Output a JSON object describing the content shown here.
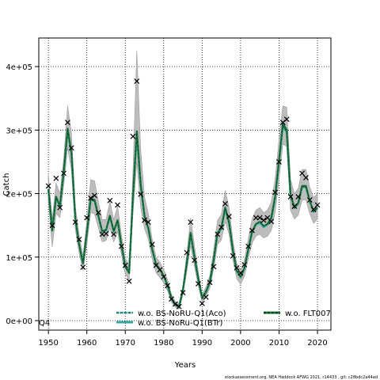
{
  "chart_data": {
    "type": "line",
    "title": "",
    "xlabel": "Years",
    "ylabel": "Catch",
    "xlim": [
      1947.5,
      2023.5
    ],
    "ylim": [
      -15000,
      445000
    ],
    "grid": true,
    "legend_position": "bottom",
    "panel_label": "Q4",
    "x_ticks": [
      1950,
      1960,
      1970,
      1980,
      1990,
      2000,
      2010,
      2020
    ],
    "x_tick_labels": [
      "1950",
      "1960",
      "1970",
      "1980",
      "1990",
      "2000",
      "2010",
      "2020"
    ],
    "y_ticks": [
      0,
      100000,
      200000,
      300000,
      400000
    ],
    "y_tick_labels": [
      "0e+00",
      "1e+05",
      "2e+05",
      "3e+05",
      "4e+05"
    ],
    "colors": {
      "band": "#bdbdbd",
      "line_aco": "#1c5e56",
      "line_btr": "#33a9a3",
      "line_flt": "#1b7a3a",
      "points": "#000000"
    },
    "series": [
      {
        "name": "w.o. BS-NoRU-Q1(Aco)",
        "x": [
          1950,
          1951,
          1952,
          1953,
          1954,
          1955,
          1956,
          1957,
          1958,
          1959,
          1960,
          1961,
          1962,
          1963,
          1964,
          1965,
          1966,
          1967,
          1968,
          1969,
          1970,
          1971,
          1972,
          1973,
          1974,
          1975,
          1976,
          1977,
          1978,
          1979,
          1980,
          1981,
          1982,
          1983,
          1984,
          1985,
          1986,
          1987,
          1988,
          1989,
          1990,
          1991,
          1992,
          1993,
          1994,
          1995,
          1996,
          1997,
          1998,
          1999,
          2000,
          2001,
          2002,
          2003,
          2004,
          2005,
          2006,
          2007,
          2008,
          2009,
          2010,
          2011,
          2012,
          2013,
          2014,
          2015,
          2016,
          2017,
          2018,
          2019,
          2020
        ],
        "values": [
          207000,
          142000,
          195000,
          180000,
          235000,
          302000,
          265000,
          160000,
          120000,
          90000,
          138000,
          192000,
          190000,
          165000,
          140000,
          142000,
          165000,
          140000,
          158000,
          118000,
          85000,
          75000,
          195000,
          298000,
          215000,
          165000,
          145000,
          112000,
          88000,
          80000,
          70000,
          55000,
          35000,
          25000,
          22000,
          48000,
          90000,
          138000,
          100000,
          65000,
          35000,
          45000,
          60000,
          95000,
          138000,
          145000,
          178000,
          155000,
          110000,
          78000,
          68000,
          82000,
          112000,
          140000,
          152000,
          155000,
          148000,
          152000,
          162000,
          195000,
          252000,
          310000,
          300000,
          198000,
          178000,
          185000,
          212000,
          212000,
          188000,
          172000,
          178000
        ],
        "upper": [
          230000,
          160000,
          217000,
          200000,
          256000,
          338000,
          295000,
          180000,
          135000,
          102000,
          156000,
          222000,
          220000,
          187000,
          159000,
          159000,
          188000,
          159000,
          180000,
          135000,
          98000,
          88000,
          235000,
          425000,
          270000,
          195000,
          168000,
          128000,
          100000,
          92000,
          81000,
          64000,
          42000,
          30000,
          27000,
          55000,
          105000,
          162000,
          118000,
          77000,
          42000,
          53000,
          71000,
          111000,
          158000,
          167000,
          205000,
          178000,
          127000,
          90000,
          79000,
          95000,
          129000,
          160000,
          174000,
          178000,
          170000,
          174000,
          187000,
          223000,
          286000,
          338000,
          336000,
          222000,
          200000,
          208000,
          238000,
          238000,
          210000,
          194000,
          200000
        ],
        "lower": [
          187000,
          116000,
          169000,
          162000,
          214000,
          272000,
          237000,
          143000,
          106000,
          79000,
          120000,
          170000,
          168000,
          146000,
          124000,
          126000,
          146000,
          124000,
          140000,
          104000,
          73000,
          64000,
          170000,
          250000,
          178000,
          145000,
          128000,
          97000,
          75000,
          68000,
          59000,
          47000,
          29000,
          21000,
          18000,
          41000,
          77000,
          118000,
          85000,
          55000,
          29000,
          38000,
          51000,
          81000,
          120000,
          127000,
          156000,
          136000,
          95000,
          66000,
          57000,
          70000,
          97000,
          122000,
          133000,
          136000,
          130000,
          133000,
          142000,
          171000,
          222000,
          278000,
          274000,
          174000,
          160000,
          166000,
          190000,
          190000,
          168000,
          153000,
          160000
        ]
      },
      {
        "name": "w.o. BS-NoRu-Q1(BTr)",
        "x": [
          1950,
          1951,
          1952,
          1953,
          1954,
          1955,
          1956,
          1957,
          1958,
          1959,
          1960,
          1961,
          1962,
          1963,
          1964,
          1965,
          1966,
          1967,
          1968,
          1969,
          1970,
          1971,
          1972,
          1973,
          1974,
          1975,
          1976,
          1977,
          1978,
          1979,
          1980,
          1981,
          1982,
          1983,
          1984,
          1985,
          1986,
          1987,
          1988,
          1989,
          1990,
          1991,
          1992,
          1993,
          1994,
          1995,
          1996,
          1997,
          1998,
          1999,
          2000,
          2001,
          2002,
          2003,
          2004,
          2005,
          2006,
          2007,
          2008,
          2009,
          2010,
          2011,
          2012,
          2013,
          2014,
          2015,
          2016,
          2017,
          2018,
          2019,
          2020
        ],
        "values": [
          205000,
          143000,
          193000,
          180000,
          234000,
          298000,
          262000,
          160000,
          121000,
          91000,
          138000,
          190000,
          188000,
          164000,
          140000,
          142000,
          163000,
          140000,
          157000,
          118000,
          86000,
          76000,
          194000,
          292000,
          212000,
          164000,
          144000,
          112000,
          88000,
          80000,
          70000,
          55000,
          35000,
          26000,
          23000,
          48000,
          90000,
          136000,
          99000,
          65000,
          36000,
          46000,
          60000,
          95000,
          137000,
          144000,
          176000,
          153000,
          110000,
          78000,
          68000,
          82000,
          111000,
          139000,
          151000,
          154000,
          147000,
          151000,
          160000,
          193000,
          249000,
          306000,
          296000,
          196000,
          177000,
          184000,
          210000,
          210000,
          187000,
          171000,
          177000
        ]
      },
      {
        "name": "w.o. FLT007",
        "x": [
          1950,
          1951,
          1952,
          1953,
          1954,
          1955,
          1956,
          1957,
          1958,
          1959,
          1960,
          1961,
          1962,
          1963,
          1964,
          1965,
          1966,
          1967,
          1968,
          1969,
          1970,
          1971,
          1972,
          1973,
          1974,
          1975,
          1976,
          1977,
          1978,
          1979,
          1980,
          1981,
          1982,
          1983,
          1984,
          1985,
          1986,
          1987,
          1988,
          1989,
          1990,
          1991,
          1992,
          1993,
          1994,
          1995,
          1996,
          1997,
          1998,
          1999,
          2000,
          2001,
          2002,
          2003,
          2004,
          2005,
          2006,
          2007,
          2008,
          2009,
          2010,
          2011,
          2012,
          2013,
          2014,
          2015,
          2016,
          2017,
          2018,
          2019,
          2020
        ],
        "values": [
          206000,
          142000,
          194000,
          181000,
          235000,
          300000,
          264000,
          161000,
          120000,
          90000,
          139000,
          191000,
          189000,
          165000,
          141000,
          143000,
          164000,
          141000,
          158000,
          119000,
          86000,
          75000,
          196000,
          296000,
          214000,
          165000,
          145000,
          113000,
          89000,
          81000,
          71000,
          56000,
          36000,
          26000,
          22000,
          49000,
          91000,
          137000,
          100000,
          66000,
          36000,
          46000,
          61000,
          96000,
          138000,
          146000,
          177000,
          154000,
          111000,
          79000,
          69000,
          83000,
          112000,
          140000,
          152000,
          156000,
          149000,
          152000,
          161000,
          196000,
          251000,
          308000,
          298000,
          197000,
          178000,
          185000,
          211000,
          211000,
          188000,
          172000,
          177000
        ]
      }
    ],
    "observations": {
      "name": "observed catch",
      "x": [
        1950,
        1951,
        1952,
        1953,
        1954,
        1955,
        1956,
        1957,
        1958,
        1959,
        1960,
        1961,
        1962,
        1963,
        1964,
        1965,
        1966,
        1967,
        1968,
        1969,
        1970,
        1971,
        1972,
        1973,
        1974,
        1975,
        1976,
        1977,
        1978,
        1979,
        1980,
        1981,
        1982,
        1983,
        1984,
        1985,
        1986,
        1987,
        1988,
        1989,
        1990,
        1991,
        1992,
        1993,
        1994,
        1995,
        1996,
        1997,
        1998,
        1999,
        2000,
        2001,
        2002,
        2003,
        2004,
        2005,
        2006,
        2007,
        2008,
        2009,
        2010,
        2011,
        2012,
        2013,
        2014,
        2015,
        2016,
        2017,
        2018,
        2019,
        2020
      ],
      "values": [
        212000,
        150000,
        224000,
        178000,
        232000,
        312000,
        272000,
        155000,
        128000,
        84000,
        162000,
        193000,
        197000,
        170000,
        136000,
        137000,
        189000,
        136000,
        182000,
        117000,
        87000,
        62000,
        290000,
        377000,
        199000,
        158000,
        155000,
        120000,
        87000,
        80000,
        69000,
        55000,
        34000,
        26000,
        22000,
        44000,
        107000,
        155000,
        95000,
        58000,
        27000,
        37000,
        60000,
        85000,
        136000,
        147000,
        184000,
        164000,
        102000,
        83000,
        75000,
        88000,
        117000,
        142000,
        162000,
        162000,
        158000,
        162000,
        156000,
        202000,
        250000,
        312000,
        317000,
        195000,
        180000,
        195000,
        232000,
        225000,
        190000,
        175000,
        182000
      ]
    }
  },
  "footer": "stockassessment.org,  NEA Haddock  AFWG  2021,  r14433 ,  git:  c28bdc2a44ad"
}
